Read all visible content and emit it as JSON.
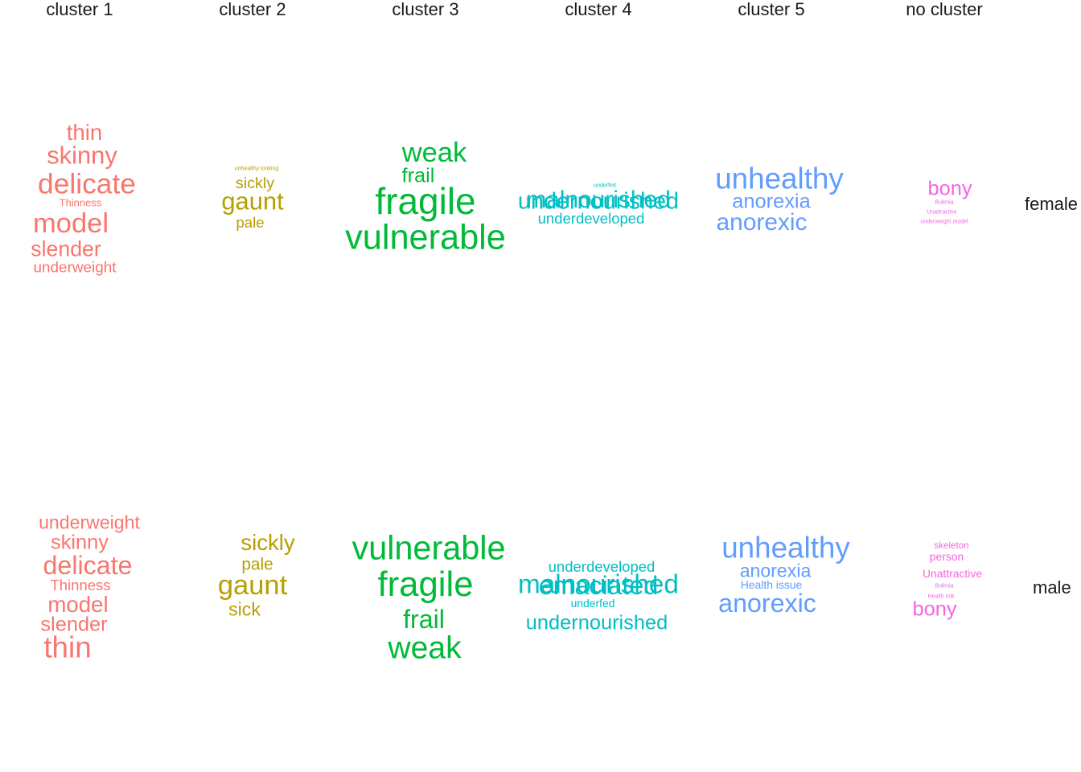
{
  "chart_data": {
    "type": "wordcloud",
    "columns": [
      "cluster  1",
      "cluster  2",
      "cluster  3",
      "cluster  4",
      "cluster  5",
      "no  cluster"
    ],
    "rows": [
      "female",
      "male"
    ],
    "colors": {
      "cluster  1": "#F8766D",
      "cluster  2": "#B79F00",
      "cluster  3": "#00BA38",
      "cluster  4": "#00BFC4",
      "cluster  5": "#619CFF",
      "no  cluster": "#F564E3"
    },
    "panels": [
      {
        "row": "female",
        "column": "cluster  1",
        "words": [
          {
            "text": "thin",
            "weight": 5.5
          },
          {
            "text": "skinny",
            "weight": 6.2
          },
          {
            "text": "delicate",
            "weight": 7.2
          },
          {
            "text": "Thinness",
            "weight": 2.3
          },
          {
            "text": "model",
            "weight": 7.0
          },
          {
            "text": "slender",
            "weight": 5.3
          },
          {
            "text": "underweight",
            "weight": 3.6
          }
        ]
      },
      {
        "row": "female",
        "column": "cluster  2",
        "words": [
          {
            "text": "unhealthy looking",
            "weight": 1.0
          },
          {
            "text": "sickly",
            "weight": 3.8
          },
          {
            "text": "gaunt",
            "weight": 6.2
          },
          {
            "text": "pale",
            "weight": 3.5
          }
        ]
      },
      {
        "row": "female",
        "column": "cluster  3",
        "words": [
          {
            "text": "weak",
            "weight": 7.0
          },
          {
            "text": "frail",
            "weight": 5.0
          },
          {
            "text": "fragile",
            "weight": 9.5
          },
          {
            "text": "vulnerable",
            "weight": 9.0
          }
        ]
      },
      {
        "row": "female",
        "column": "cluster  4",
        "words": [
          {
            "text": "underfed",
            "weight": 1.0
          },
          {
            "text": "undernourished",
            "weight": 6.0
          },
          {
            "text": "malnourished",
            "weight": 6.0
          },
          {
            "text": "underdeveloped",
            "weight": 3.5
          }
        ]
      },
      {
        "row": "female",
        "column": "cluster  5",
        "words": [
          {
            "text": "unhealthy",
            "weight": 7.5
          },
          {
            "text": "anorexia",
            "weight": 5.0
          },
          {
            "text": "anorexic",
            "weight": 6.0
          }
        ]
      },
      {
        "row": "female",
        "column": "no  cluster",
        "words": [
          {
            "text": "bony",
            "weight": 5.0
          },
          {
            "text": "Bulimia",
            "weight": 1.0
          },
          {
            "text": "Unattractive",
            "weight": 1.0
          },
          {
            "text": "underweight model",
            "weight": 1.0
          }
        ]
      },
      {
        "row": "male",
        "column": "cluster  1",
        "words": [
          {
            "text": "underweight",
            "weight": 4.5
          },
          {
            "text": "skinny",
            "weight": 5.0
          },
          {
            "text": "delicate",
            "weight": 6.5
          },
          {
            "text": "Thinness",
            "weight": 3.5
          },
          {
            "text": "model",
            "weight": 5.5
          },
          {
            "text": "slender",
            "weight": 5.0
          },
          {
            "text": "thin",
            "weight": 7.5
          }
        ]
      },
      {
        "row": "male",
        "column": "cluster  2",
        "words": [
          {
            "text": "sickly",
            "weight": 5.5
          },
          {
            "text": "pale",
            "weight": 4.0
          },
          {
            "text": "gaunt",
            "weight": 7.0
          },
          {
            "text": "sick",
            "weight": 4.5
          }
        ]
      },
      {
        "row": "male",
        "column": "cluster  3",
        "words": [
          {
            "text": "vulnerable",
            "weight": 8.5
          },
          {
            "text": "fragile",
            "weight": 9.0
          },
          {
            "text": "frail",
            "weight": 6.5
          },
          {
            "text": "weak",
            "weight": 8.0
          }
        ]
      },
      {
        "row": "male",
        "column": "cluster  4",
        "words": [
          {
            "text": "underdeveloped",
            "weight": 3.5
          },
          {
            "text": "malnourished",
            "weight": 7.0
          },
          {
            "text": "emaciated",
            "weight": 6.5
          },
          {
            "text": "underfed",
            "weight": 2.5
          },
          {
            "text": "undernourished",
            "weight": 5.0
          }
        ]
      },
      {
        "row": "male",
        "column": "cluster  5",
        "words": [
          {
            "text": "unhealthy",
            "weight": 7.5
          },
          {
            "text": "anorexia",
            "weight": 4.5
          },
          {
            "text": "Health issue",
            "weight": 2.5
          },
          {
            "text": "anorexic",
            "weight": 6.5
          }
        ]
      },
      {
        "row": "male",
        "column": "no  cluster",
        "words": [
          {
            "text": "skeleton",
            "weight": 2.0
          },
          {
            "text": "person",
            "weight": 2.5
          },
          {
            "text": "Unattractive",
            "weight": 2.5
          },
          {
            "text": "Bulimia",
            "weight": 1.0
          },
          {
            "text": "Health risk",
            "weight": 1.0
          },
          {
            "text": "bony",
            "weight": 5.0
          }
        ]
      }
    ]
  }
}
